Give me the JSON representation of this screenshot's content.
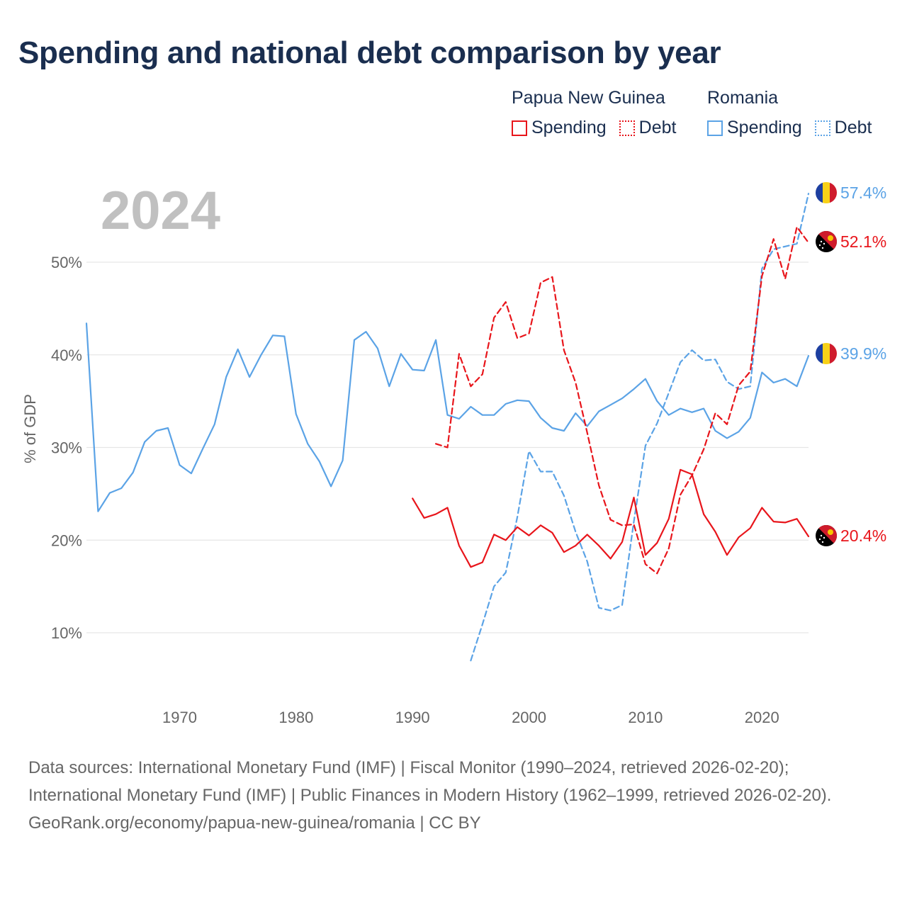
{
  "title": "Spending and national debt comparison by year",
  "legend": {
    "groups": [
      {
        "country": "Papua New Guinea",
        "spending_label": "Spending",
        "debt_label": "Debt",
        "color": "#e8151b"
      },
      {
        "country": "Romania",
        "spending_label": "Spending",
        "debt_label": "Debt",
        "color": "#5ba3e6"
      }
    ]
  },
  "footer": {
    "sources": "Data sources: International Monetary Fund (IMF) | Fiscal Monitor (1990–2024, retrieved 2026-02-20); International Monetary Fund (IMF) | Public Finances in Modern History (1962–1999, retrieved 2026-02-20).",
    "link": "GeoRank.org/economy/papua-new-guinea/romania | CC BY"
  },
  "chart_data": {
    "type": "line",
    "title": "Spending and national debt comparison by year",
    "year_label": "2024",
    "xlabel": "",
    "ylabel": "% of GDP",
    "xlim": [
      1961.5,
      2024
    ],
    "ylim": [
      3,
      60
    ],
    "x_ticks": [
      1970,
      1980,
      1990,
      2000,
      2010,
      2020
    ],
    "y_ticks": [
      10,
      20,
      30,
      40,
      50
    ],
    "y_tick_labels": [
      "10%",
      "20%",
      "30%",
      "40%",
      "50%"
    ],
    "grid": true,
    "series": [
      {
        "name": "Romania Spending",
        "country": "Romania",
        "metric": "Spending",
        "color": "#5ba3e6",
        "dashed": false,
        "end_label": "39.9%",
        "x": [
          1962,
          1963,
          1964,
          1965,
          1966,
          1967,
          1968,
          1969,
          1970,
          1971,
          1972,
          1973,
          1974,
          1975,
          1976,
          1977,
          1978,
          1979,
          1980,
          1981,
          1982,
          1983,
          1984,
          1985,
          1986,
          1987,
          1988,
          1989,
          1990,
          1991,
          1992,
          1993,
          1994,
          1995,
          1996,
          1997,
          1998,
          1999,
          2000,
          2001,
          2002,
          2003,
          2004,
          2005,
          2006,
          2007,
          2008,
          2009,
          2010,
          2011,
          2012,
          2013,
          2014,
          2015,
          2016,
          2017,
          2018,
          2019,
          2020,
          2021,
          2022,
          2023,
          2024
        ],
        "y": [
          43.4,
          23.1,
          25.1,
          25.6,
          27.3,
          30.6,
          31.8,
          32.1,
          28.1,
          27.2,
          29.9,
          32.5,
          37.6,
          40.6,
          37.6,
          40.0,
          42.1,
          42.0,
          33.6,
          30.4,
          28.5,
          25.8,
          28.6,
          41.6,
          42.5,
          40.7,
          36.6,
          40.1,
          38.4,
          38.3,
          41.6,
          33.5,
          33.1,
          34.4,
          33.5,
          33.5,
          34.7,
          35.1,
          35.0,
          33.2,
          32.1,
          31.8,
          33.7,
          32.3,
          33.9,
          34.6,
          35.3,
          36.3,
          37.4,
          35.0,
          33.5,
          34.2,
          33.8,
          34.2,
          31.8,
          31.0,
          31.7,
          33.2,
          38.1,
          37.0,
          37.4,
          36.6,
          39.9
        ]
      },
      {
        "name": "Romania Debt",
        "country": "Romania",
        "metric": "Debt",
        "color": "#5ba3e6",
        "dashed": true,
        "end_label": "57.4%",
        "x": [
          1995,
          1996,
          1997,
          1998,
          1999,
          2000,
          2001,
          2002,
          2003,
          2004,
          2005,
          2006,
          2007,
          2008,
          2009,
          2010,
          2011,
          2012,
          2013,
          2014,
          2015,
          2016,
          2017,
          2018,
          2019,
          2020,
          2021,
          2022,
          2023,
          2024
        ],
        "y": [
          7.0,
          10.9,
          15.0,
          16.5,
          22.5,
          29.6,
          27.4,
          27.4,
          24.8,
          20.9,
          17.7,
          12.7,
          12.4,
          13.0,
          22.0,
          30.2,
          32.6,
          35.9,
          39.2,
          40.5,
          39.4,
          39.5,
          37.1,
          36.3,
          36.6,
          49.3,
          51.4,
          51.7,
          52.0,
          57.4
        ]
      },
      {
        "name": "Papua New Guinea Spending",
        "country": "Papua New Guinea",
        "metric": "Spending",
        "color": "#e8151b",
        "dashed": false,
        "end_label": "20.4%",
        "x": [
          1990,
          1991,
          1992,
          1993,
          1994,
          1995,
          1996,
          1997,
          1998,
          1999,
          2000,
          2001,
          2002,
          2003,
          2004,
          2005,
          2006,
          2007,
          2008,
          2009,
          2010,
          2011,
          2012,
          2013,
          2014,
          2015,
          2016,
          2017,
          2018,
          2019,
          2020,
          2021,
          2022,
          2023,
          2024
        ],
        "y": [
          24.5,
          22.4,
          22.8,
          23.5,
          19.4,
          17.1,
          17.6,
          20.6,
          20.0,
          21.4,
          20.5,
          21.6,
          20.8,
          18.7,
          19.4,
          20.6,
          19.4,
          18.0,
          19.8,
          24.6,
          18.4,
          19.7,
          22.3,
          27.6,
          27.1,
          22.8,
          20.9,
          18.4,
          20.3,
          21.3,
          23.5,
          22.0,
          21.9,
          22.3,
          20.4
        ]
      },
      {
        "name": "Papua New Guinea Debt",
        "country": "Papua New Guinea",
        "metric": "Debt",
        "color": "#e8151b",
        "dashed": true,
        "end_label": "52.1%",
        "x": [
          1992,
          1993,
          1994,
          1995,
          1996,
          1997,
          1998,
          1999,
          2000,
          2001,
          2002,
          2003,
          2004,
          2005,
          2006,
          2007,
          2008,
          2009,
          2010,
          2011,
          2012,
          2013,
          2014,
          2015,
          2016,
          2017,
          2018,
          2019,
          2020,
          2021,
          2022,
          2023,
          2024
        ],
        "y": [
          30.4,
          30.0,
          40.1,
          36.6,
          37.9,
          44.0,
          45.7,
          41.8,
          42.3,
          47.8,
          48.4,
          40.5,
          37.0,
          31.6,
          25.9,
          22.2,
          21.6,
          21.7,
          17.4,
          16.4,
          19.1,
          24.9,
          27.0,
          29.8,
          33.7,
          32.5,
          36.7,
          38.2,
          48.5,
          52.5,
          48.2,
          53.8,
          52.1
        ]
      }
    ]
  }
}
